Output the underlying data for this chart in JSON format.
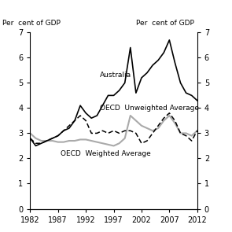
{
  "years": [
    1982,
    1983,
    1984,
    1985,
    1986,
    1987,
    1988,
    1989,
    1990,
    1991,
    1992,
    1993,
    1994,
    1995,
    1996,
    1997,
    1998,
    1999,
    2000,
    2001,
    2002,
    2003,
    2004,
    2005,
    2006,
    2007,
    2008,
    2009,
    2010,
    2011,
    2012
  ],
  "australia": [
    2.8,
    2.5,
    2.6,
    2.7,
    2.8,
    2.9,
    3.1,
    3.2,
    3.5,
    4.1,
    3.8,
    3.6,
    3.7,
    4.1,
    4.5,
    4.5,
    4.7,
    5.0,
    6.4,
    4.6,
    5.2,
    5.4,
    5.7,
    5.9,
    6.2,
    6.7,
    5.8,
    5.0,
    4.6,
    4.5,
    4.3
  ],
  "oecd_unweighted": [
    2.8,
    2.6,
    2.6,
    2.7,
    2.8,
    2.9,
    3.1,
    3.3,
    3.5,
    3.7,
    3.5,
    3.0,
    3.0,
    3.1,
    3.0,
    3.1,
    3.0,
    3.1,
    3.1,
    3.0,
    2.6,
    2.7,
    3.0,
    3.3,
    3.6,
    3.8,
    3.5,
    3.0,
    2.9,
    2.7,
    3.1
  ],
  "oecd_weighted": [
    3.0,
    2.8,
    2.7,
    2.7,
    2.7,
    2.65,
    2.65,
    2.7,
    2.7,
    2.75,
    2.75,
    2.7,
    2.65,
    2.6,
    2.55,
    2.5,
    2.6,
    2.8,
    3.7,
    3.5,
    3.3,
    3.2,
    3.1,
    3.2,
    3.5,
    3.7,
    3.4,
    3.0,
    3.0,
    2.9,
    3.1
  ],
  "ylim": [
    0,
    7
  ],
  "yticks": [
    0,
    1,
    2,
    3,
    4,
    5,
    6,
    7
  ],
  "xlim": [
    1982,
    2012
  ],
  "xticks": [
    1982,
    1987,
    1992,
    1997,
    2002,
    2007,
    2012
  ],
  "ylabel_left": "Per  cent of GDP",
  "ylabel_right": "Per  cent of GDP",
  "label_australia": "Australia",
  "label_unweighted": "OECD  Unweighted Average",
  "label_weighted": "OECD  Weighted Average",
  "color_australia": "#000000",
  "color_unweighted": "#000000",
  "color_weighted": "#aaaaaa",
  "background_color": "#ffffff"
}
